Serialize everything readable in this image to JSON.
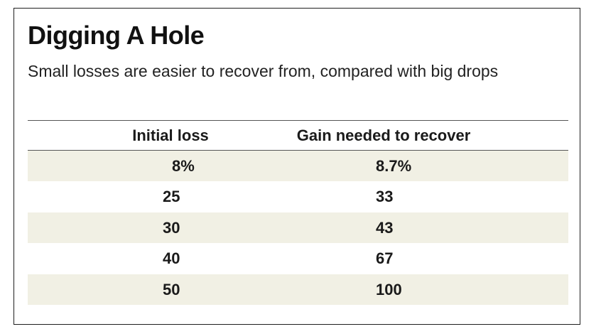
{
  "chart_data": {
    "type": "table",
    "title": "Digging A Hole",
    "subtitle": "Small losses are easier to recover from, compared with big drops",
    "columns": [
      "Initial loss",
      "Gain needed to recover"
    ],
    "rows": [
      [
        "8%",
        "8.7%"
      ],
      [
        "25",
        "33"
      ],
      [
        "30",
        "43"
      ],
      [
        "40",
        "67"
      ],
      [
        "50",
        "100"
      ]
    ],
    "row_shading_color": "#f1f0e4"
  }
}
